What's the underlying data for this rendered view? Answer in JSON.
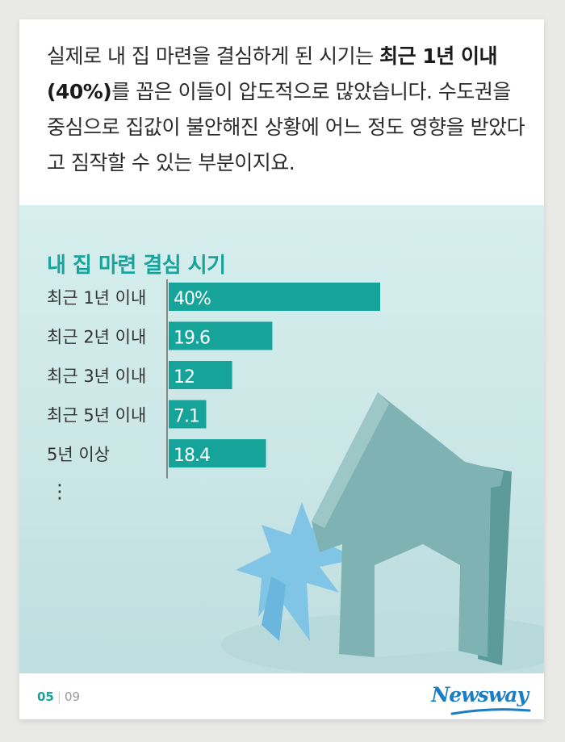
{
  "intro": {
    "text_1": "실제로 내 집 마련을 결심하게 된 시기는 ",
    "highlight": "최근 1년 이내(40%)",
    "text_2": "를 꼽은 이들이 압도적으로 많았습니다. 수도권을 중심으로 집값이 불안해진 상황에 어느 정도 영향을 받았다고 짐작할 수 있는 부분이지요."
  },
  "chart_data": {
    "type": "bar",
    "orientation": "horizontal",
    "title": "내 집 마련 결심 시기",
    "categories": [
      "최근 1년 이내",
      "최근 2년 이내",
      "최근 3년 이내",
      "최근 5년 이내",
      "5년 이상"
    ],
    "values": [
      40,
      19.6,
      12,
      7.1,
      18.4
    ],
    "value_labels": [
      "40%",
      "19.6",
      "12",
      "7.1",
      "18.4"
    ],
    "unit": "%",
    "xlim": [
      0,
      40
    ],
    "continuation_marker": "⋮",
    "bar_color": "#16a39a",
    "title_color": "#16a39a"
  },
  "footer": {
    "page_current": "05",
    "page_total": "09",
    "brand": "Newsway"
  },
  "colors": {
    "accent": "#16a39a",
    "brand": "#1c7ec2",
    "background": "#d6efee"
  }
}
